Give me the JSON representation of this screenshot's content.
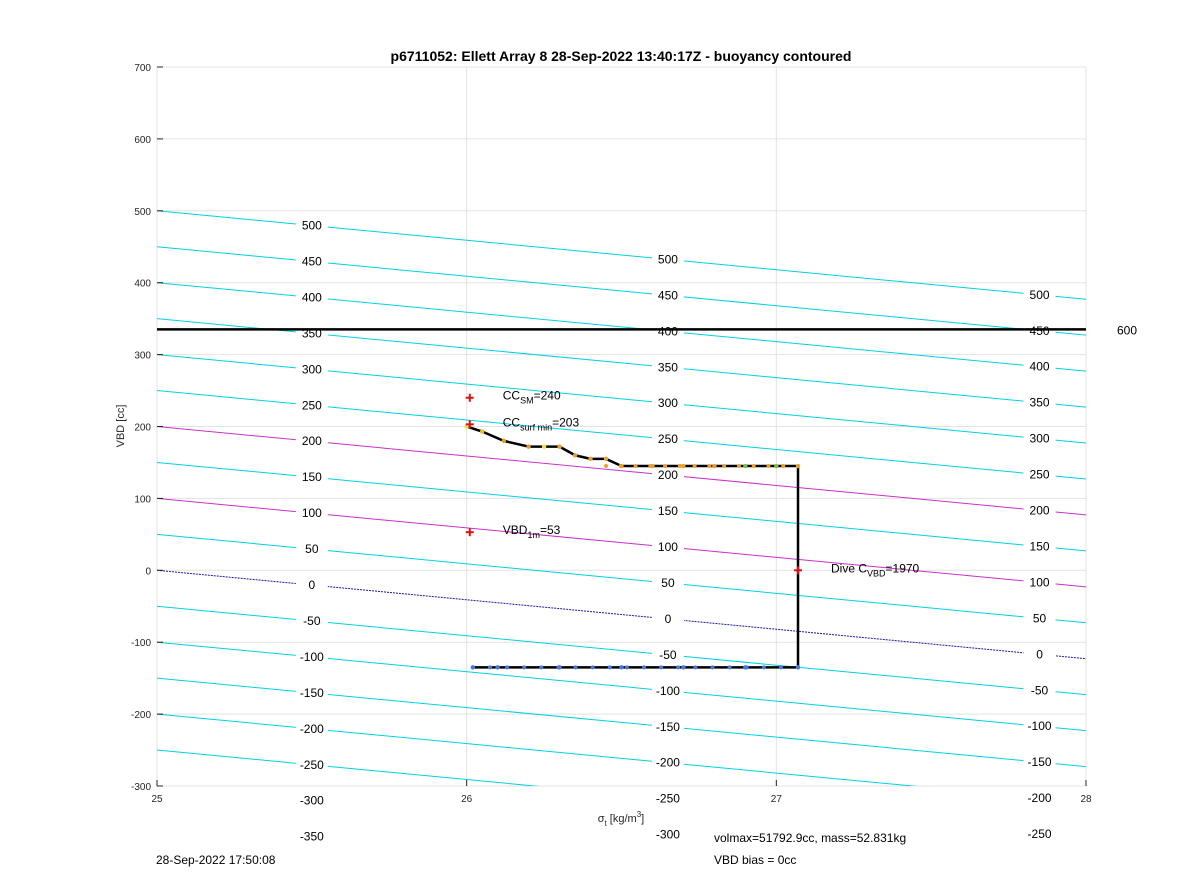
{
  "chart_data": {
    "type": "line",
    "title": "p6711052: Ellett Array 8 28-Sep-2022 13:40:17Z - buoyancy contoured",
    "xlabel_main": "σ",
    "xlabel_sub": "t",
    "xlabel_unit": "[kg/m",
    "xlabel_sup": "3",
    "xlabel_close": "]",
    "ylabel": "VBD [cc]",
    "xlim": [
      25,
      28
    ],
    "ylim": [
      -300,
      700
    ],
    "xticks": [
      25,
      26,
      27,
      28
    ],
    "yticks": [
      -300,
      -200,
      -100,
      0,
      100,
      200,
      300,
      400,
      500,
      600,
      700
    ],
    "grid": true,
    "colors": {
      "contour": "#00d2e0",
      "contour_magenta": "#c832c8",
      "zero_contour": "#1a1a9a",
      "horizontal_line": "#000000",
      "dive_path": "#000000",
      "marker": "#dd1111"
    },
    "contour_slope_cc_per_sigma": -41,
    "contour_intercept_cc": [
      -350,
      -300,
      -250,
      -200,
      -150,
      -100,
      -50,
      0,
      50,
      100,
      150,
      200,
      250,
      300,
      350,
      400,
      450,
      500
    ],
    "contour_label_rows": [
      {
        "x": 25.5,
        "labels": [
          "-350",
          "-300",
          "-250",
          "-200",
          "-150",
          "-100",
          "-50",
          "0",
          "50",
          "100",
          "150",
          "200",
          "250",
          "300",
          "350",
          "400",
          "450",
          "500"
        ]
      },
      {
        "x": 26.65,
        "labels": [
          "-300",
          "-250",
          "-200",
          "-150",
          "-100",
          "-50",
          "0",
          "50",
          "100",
          "150",
          "200",
          "250",
          "300",
          "350",
          "400",
          "450",
          "500"
        ]
      },
      {
        "x": 27.85,
        "labels": [
          "-250",
          "-200",
          "-150",
          "-100",
          "-50",
          "0",
          "50",
          "100",
          "150",
          "200",
          "250",
          "300",
          "350",
          "400",
          "450",
          "500"
        ]
      }
    ],
    "horizontal_line": {
      "y": 335,
      "label": "600"
    },
    "dive_path": {
      "x": [
        26.0,
        26.05,
        26.12,
        26.2,
        26.25,
        26.3,
        26.35,
        26.4,
        26.45,
        26.5,
        26.6,
        26.7,
        26.8,
        26.9,
        27.0,
        27.07,
        27.07,
        26.9,
        26.7,
        26.5,
        26.3,
        26.1,
        26.02
      ],
      "y": [
        200,
        193,
        180,
        172,
        172,
        172,
        160,
        155,
        155,
        145,
        145,
        145,
        145,
        145,
        145,
        145,
        -135,
        -135,
        -135,
        -135,
        -135,
        -135,
        -135
      ]
    },
    "markers": [
      {
        "x": 26.01,
        "y": 240,
        "label": "CC",
        "sub": "SM",
        "value": "=240"
      },
      {
        "x": 26.01,
        "y": 203,
        "label": "CC",
        "sub": "surf min",
        "value": "=203"
      },
      {
        "x": 26.01,
        "y": 53,
        "label": "VBD",
        "sub": "1m",
        "value": "=53"
      },
      {
        "x": 27.07,
        "y": 0,
        "label": "Dive C",
        "sub": "VBD",
        "value": "=1970"
      }
    ]
  },
  "footer": {
    "timestamp": "28-Sep-2022 17:50:08",
    "volmax": "volmax=51792.9cc, mass=52.831kg",
    "vbd_bias": "VBD bias = 0cc"
  }
}
